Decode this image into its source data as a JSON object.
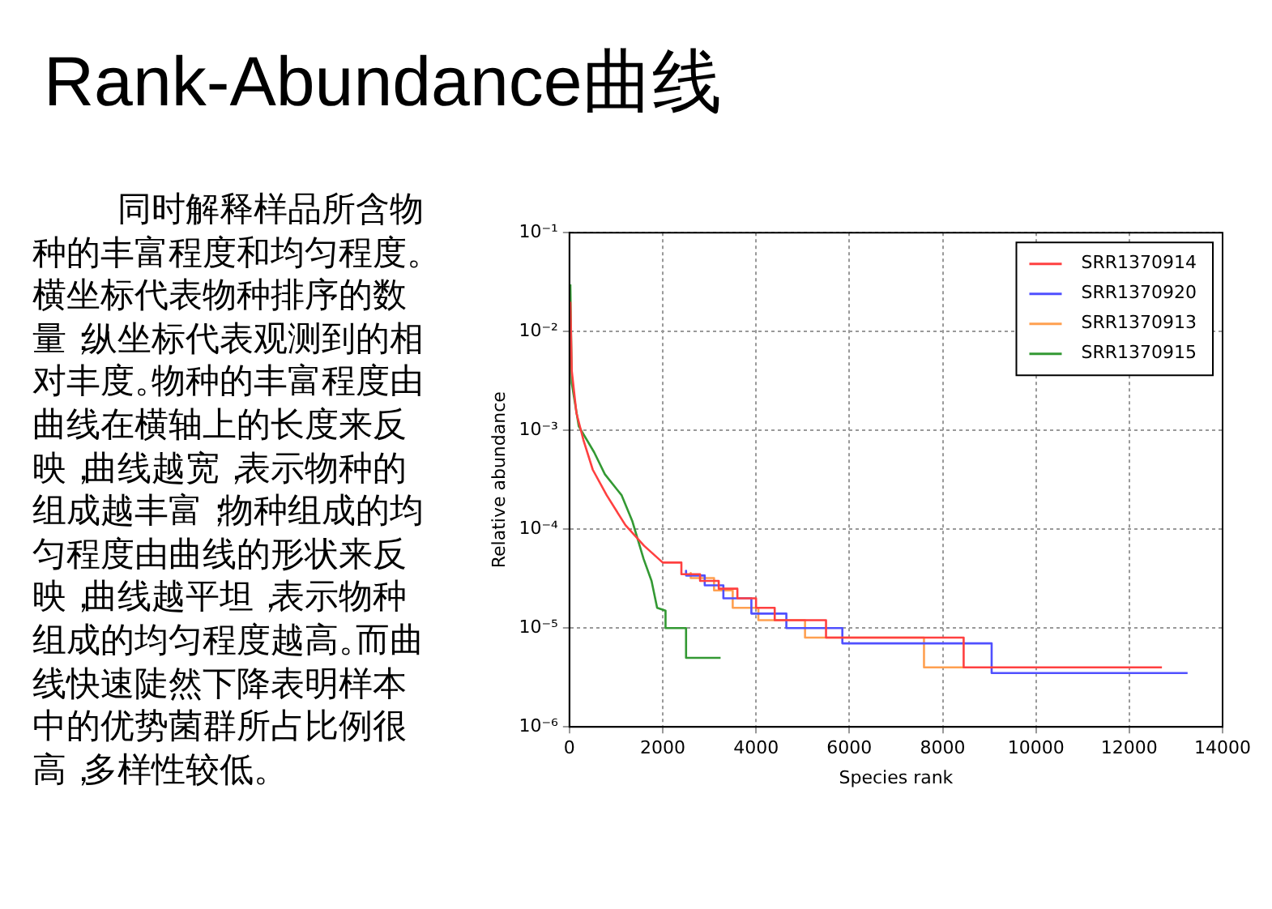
{
  "chart_data": {
    "type": "line",
    "title": "Rank-Abundance曲线",
    "xlabel": "Species rank",
    "ylabel": "Relative abundance",
    "log": "y",
    "grid": true,
    "legend": "top right",
    "xlim": [
      0,
      14000
    ],
    "xticks": [
      0,
      2000,
      4000,
      6000,
      8000,
      10000,
      12000,
      14000
    ],
    "ylim": [
      1e-06,
      0.1
    ],
    "yticks": [
      {
        "value": 1e-06,
        "label": "10⁻⁶"
      },
      {
        "value": 1e-05,
        "label": "10⁻⁵"
      },
      {
        "value": 0.0001,
        "label": "10⁻⁴"
      },
      {
        "value": 0.001,
        "label": "10⁻³"
      },
      {
        "value": 0.01,
        "label": "10⁻²"
      },
      {
        "value": 0.1,
        "label": "10⁻¹"
      }
    ],
    "annotations": [
      "同时解释样品所含物种的丰富程度和均匀程度。横坐标代表物种排序的数量；纵坐标代表观测到的相对丰度。物种的丰富程度由曲线在横轴上的长度来反映，曲线越宽，表示物种的组成越丰富；物种组成的均匀程度由曲线的形状来反映，曲线越平坦，表示物种组成的均匀程度越高。而曲线快速陡然下降表明样本中的优势菌群所占比例很高，多样性较低。"
    ],
    "series": [
      {
        "name": "SRR1370914",
        "color": "#ff4040",
        "x": [
          20,
          50,
          150,
          300,
          500,
          800,
          1200,
          1600,
          2000,
          2400,
          2400,
          2800,
          2800,
          3200,
          3200,
          3600,
          3600,
          4000,
          4000,
          4400,
          4400,
          5500,
          5500,
          8450,
          8450,
          12700
        ],
        "values": [
          0.02,
          0.004,
          0.0015,
          0.0008,
          0.0004,
          0.00022,
          0.00011,
          6.8e-05,
          4.6e-05,
          4.6e-05,
          3.5e-05,
          3.5e-05,
          3e-05,
          3e-05,
          2.5e-05,
          2.5e-05,
          2e-05,
          2e-05,
          1.6e-05,
          1.6e-05,
          1.2e-05,
          1.2e-05,
          8e-06,
          8e-06,
          4e-06,
          4e-06
        ]
      },
      {
        "name": "SRR1370920",
        "color": "#5050ff",
        "x": [
          2500,
          2500,
          2900,
          2900,
          3300,
          3300,
          3900,
          3900,
          4650,
          4650,
          5850,
          5850,
          9050,
          9050,
          13250
        ],
        "values": [
          3.8e-05,
          3.4e-05,
          3.4e-05,
          2.7e-05,
          2.7e-05,
          2e-05,
          2e-05,
          1.4e-05,
          1.4e-05,
          1e-05,
          1e-05,
          7e-06,
          7e-06,
          3.5e-06,
          3.5e-06
        ]
      },
      {
        "name": "SRR1370913",
        "color": "#ffa050",
        "x": [
          2600,
          2600,
          3100,
          3100,
          3500,
          3500,
          4050,
          4050,
          5050,
          5050,
          7600,
          7600,
          8450
        ],
        "values": [
          3.6e-05,
          3.2e-05,
          3.2e-05,
          2.4e-05,
          2.4e-05,
          1.6e-05,
          1.6e-05,
          1.2e-05,
          1.2e-05,
          8e-06,
          8e-06,
          4e-06,
          4e-06
        ]
      },
      {
        "name": "SRR1370915",
        "color": "#339933",
        "x": [
          20,
          50,
          200,
          530,
          760,
          1120,
          1350,
          1590,
          1760,
          1880,
          2060,
          2060,
          2500,
          2500,
          3240
        ],
        "values": [
          0.03,
          0.003,
          0.0011,
          0.0006,
          0.00036,
          0.00022,
          0.00012,
          5e-05,
          3e-05,
          1.6e-05,
          1.5e-05,
          1e-05,
          1e-05,
          5e-06,
          5e-06
        ]
      }
    ]
  }
}
